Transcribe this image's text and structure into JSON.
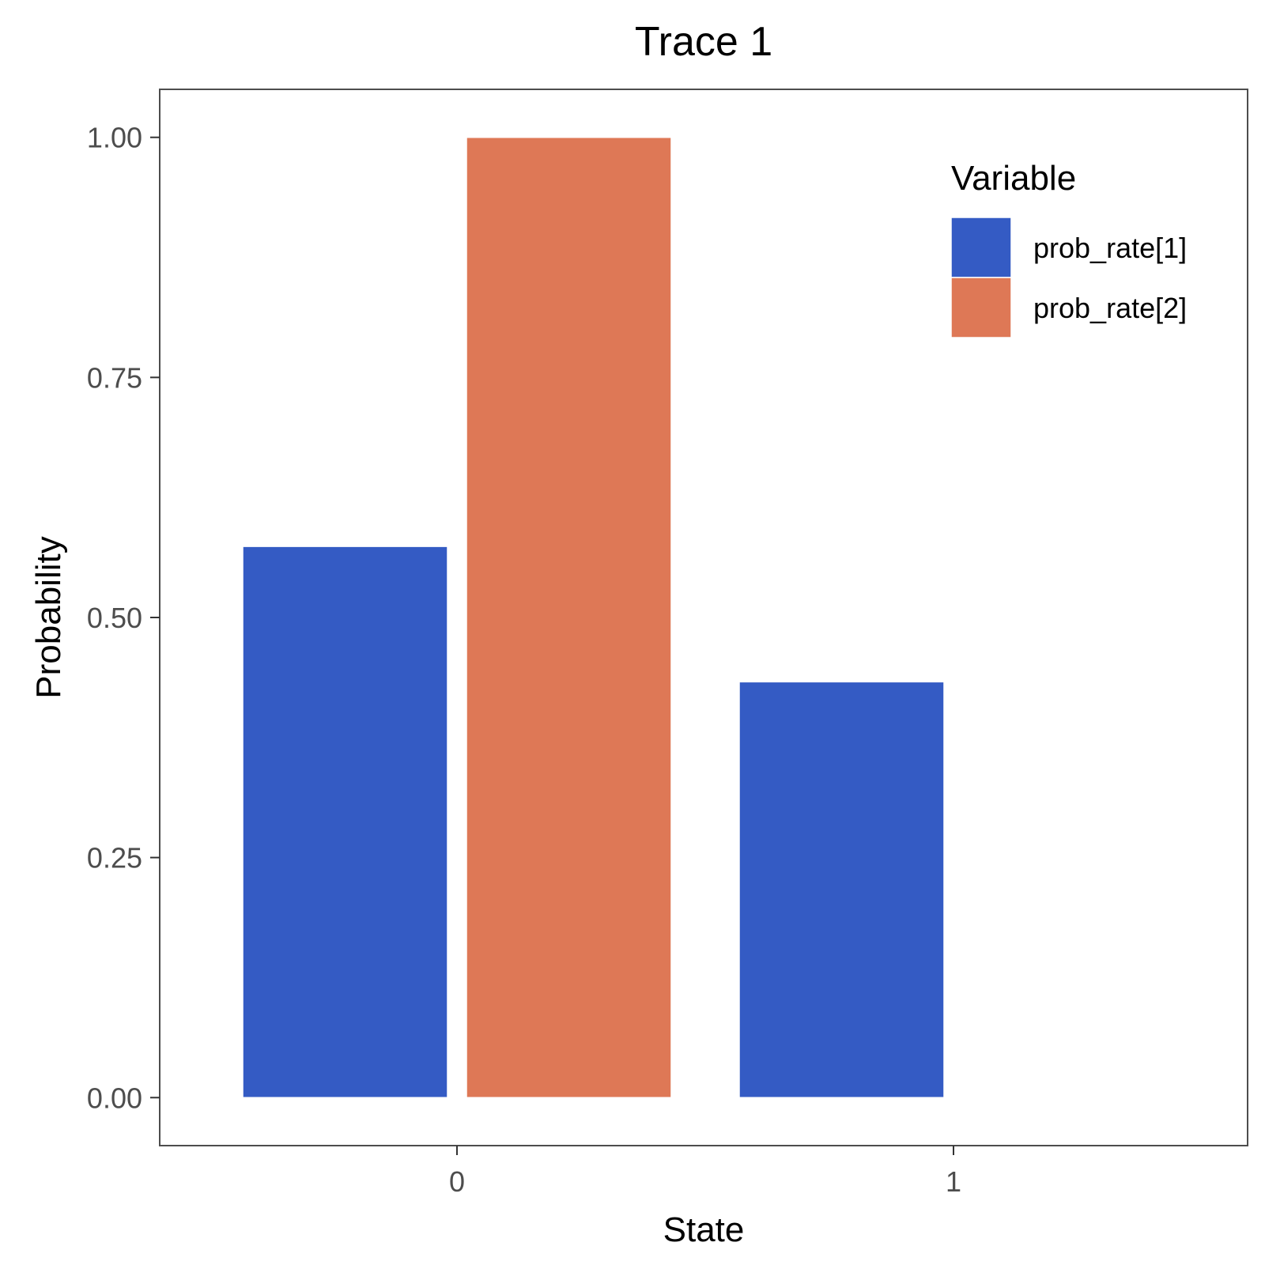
{
  "chart_data": {
    "type": "bar",
    "title": "Trace 1",
    "xlabel": "State",
    "ylabel": "Probability",
    "categories": [
      "0",
      "1"
    ],
    "ylim": [
      -0.05,
      1.05
    ],
    "yticks": [
      "0.00",
      "0.25",
      "0.50",
      "0.75",
      "1.00"
    ],
    "grid": false,
    "legend": {
      "title": "Variable",
      "position": "top-right"
    },
    "series": [
      {
        "name": "prob_rate[1]",
        "color": "#345BC4",
        "values": [
          0.574,
          0.433
        ]
      },
      {
        "name": "prob_rate[2]",
        "color": "#DE7856",
        "values": [
          1.0,
          0
        ]
      }
    ]
  }
}
